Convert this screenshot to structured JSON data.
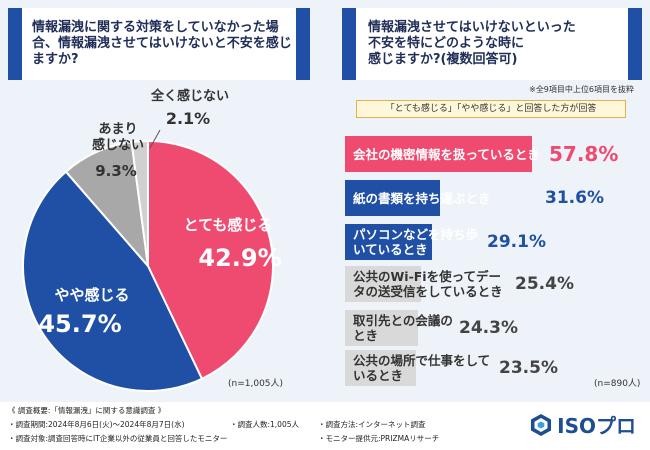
{
  "left_question": "情報漏洩に関する対策をしていなかった場合、情報漏洩させてはいけないと不安を感じますか?",
  "right_question_line1": "情報漏洩させてはいけないといった",
  "right_question_line2": "不安を特にどのような時に",
  "right_question_line3": "感じますか?",
  "right_question_suffix": "(複数回答可)",
  "top_note": "※全9項目中上位6項目を抜粋",
  "sub_label": "「とても感じる」「やや感じる」と回答した方が回答",
  "left_n": "(n=1,005人)",
  "right_n": "(n=890人)",
  "colors": {
    "navy": "#1f50a6",
    "pink": "#ef4a6f",
    "gray": "#a8a8a8",
    "lightgray": "#d9d9d9"
  },
  "chart_data": [
    {
      "type": "pie",
      "slices": [
        {
          "label": "とても感じる",
          "value": 42.9,
          "display": "42.9%",
          "color": "#ef4a6f"
        },
        {
          "label": "やや感じる",
          "value": 45.7,
          "display": "45.7%",
          "color": "#1f50a6"
        },
        {
          "label": "あまり感じない",
          "value": 9.3,
          "display": "9.3%",
          "color": "#a8a8a8"
        },
        {
          "label": "全く感じない",
          "value": 2.1,
          "display": "2.1%",
          "color": "#d0d0d0"
        }
      ]
    },
    {
      "type": "bar",
      "orientation": "horizontal",
      "max": 60,
      "categories": [
        "会社の機密情報を扱っているとき",
        "紙の書類を持ち運ぶとき",
        "パソコンなどを持ち歩いているとき",
        "公共のWi-Fiを使ってデータの送受信をしているとき",
        "取引先との会議のとき",
        "公共の場所で仕事をしているとき"
      ],
      "values": [
        57.8,
        31.6,
        29.1,
        25.4,
        24.3,
        23.5
      ],
      "display": [
        "57.8%",
        "31.6%",
        "29.1%",
        "25.4%",
        "24.3%",
        "23.5%"
      ]
    }
  ],
  "footer": {
    "title": "《 調査概要:「情報漏洩」に関する意識調査 》",
    "period": "・調査期間:2024年8月6日(火)～2024年8月7日(水)",
    "count": "・調査人数:1,005人",
    "method": "・調査方法:インターネット調査",
    "target": "・調査対象:調査回答時にIT企業以外の従業員と回答したモニター",
    "provider": "・モニター提供元:PRIZMAリサーチ"
  },
  "logo": "ISOプロ"
}
